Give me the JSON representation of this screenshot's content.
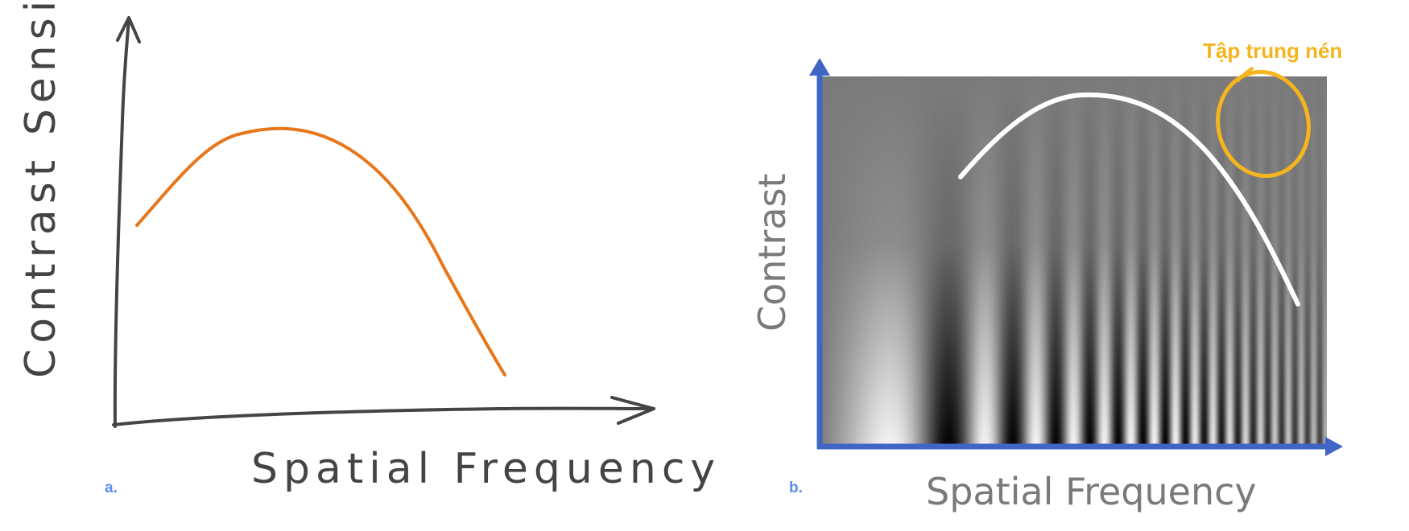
{
  "panel_a": {
    "letter": "a.",
    "y_axis_label": "Contrast Sensitivity",
    "x_axis_label": "Spatial Frequency",
    "curve_color": "#e8761a",
    "axis_color": "#444444"
  },
  "panel_b": {
    "letter": "b.",
    "y_axis_label": "Contrast",
    "x_axis_label": "Spatial Frequency",
    "annotation": "Tập trung nén",
    "annotation_color": "#f5b51e",
    "axis_color": "#3f66c4",
    "curve_color": "#ffffff"
  },
  "letter_color": "#5b8def"
}
